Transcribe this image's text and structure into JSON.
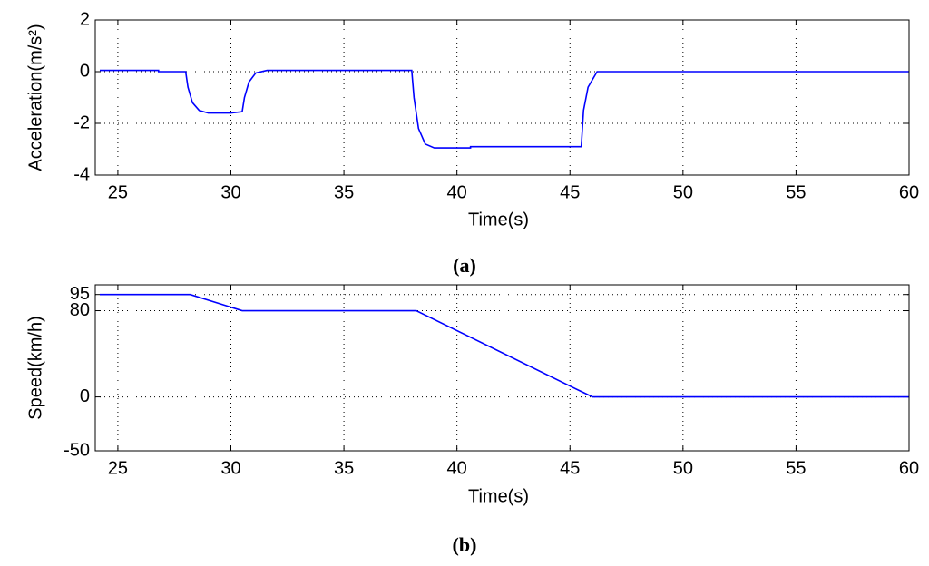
{
  "chart_data": [
    {
      "type": "line",
      "caption": "(a)",
      "xlabel": "Time(s)",
      "ylabel": "Acceleration(m/s²)",
      "x": [
        24.2,
        26.8,
        26.8,
        28,
        28.1,
        28.3,
        28.6,
        29,
        30,
        30.5,
        30.6,
        30.8,
        31.1,
        31.6,
        35,
        38,
        38.1,
        38.3,
        38.6,
        39,
        40.6,
        40.6,
        45.5,
        45.6,
        45.8,
        46.2,
        60
      ],
      "values": [
        0.05,
        0.05,
        0,
        0,
        -0.6,
        -1.2,
        -1.5,
        -1.6,
        -1.6,
        -1.55,
        -1,
        -0.4,
        -0.05,
        0.05,
        0.05,
        0.05,
        -1,
        -2.2,
        -2.8,
        -2.95,
        -2.95,
        -2.9,
        -2.9,
        -1.5,
        -0.6,
        0,
        0
      ],
      "color": "#0000ff",
      "xlim": [
        24,
        60
      ],
      "ylim": [
        -4,
        2
      ],
      "xticks": [
        25,
        30,
        35,
        40,
        45,
        50,
        55,
        60
      ],
      "yticks": [
        -4,
        -2,
        0,
        2
      ],
      "grid": true
    },
    {
      "type": "line",
      "caption": "(b)",
      "xlabel": "Time(s)",
      "ylabel": "Speed(km/h)",
      "x": [
        24.2,
        28.2,
        30.5,
        38.2,
        45.5,
        46,
        60
      ],
      "values": [
        95,
        95,
        80,
        80,
        5,
        0,
        0
      ],
      "color": "#0000ff",
      "xlim": [
        24,
        60
      ],
      "ylim": [
        -50,
        104
      ],
      "xticks": [
        25,
        30,
        35,
        40,
        45,
        50,
        55,
        60
      ],
      "yticks": [
        -50,
        0,
        80,
        95
      ],
      "grid": true
    }
  ]
}
